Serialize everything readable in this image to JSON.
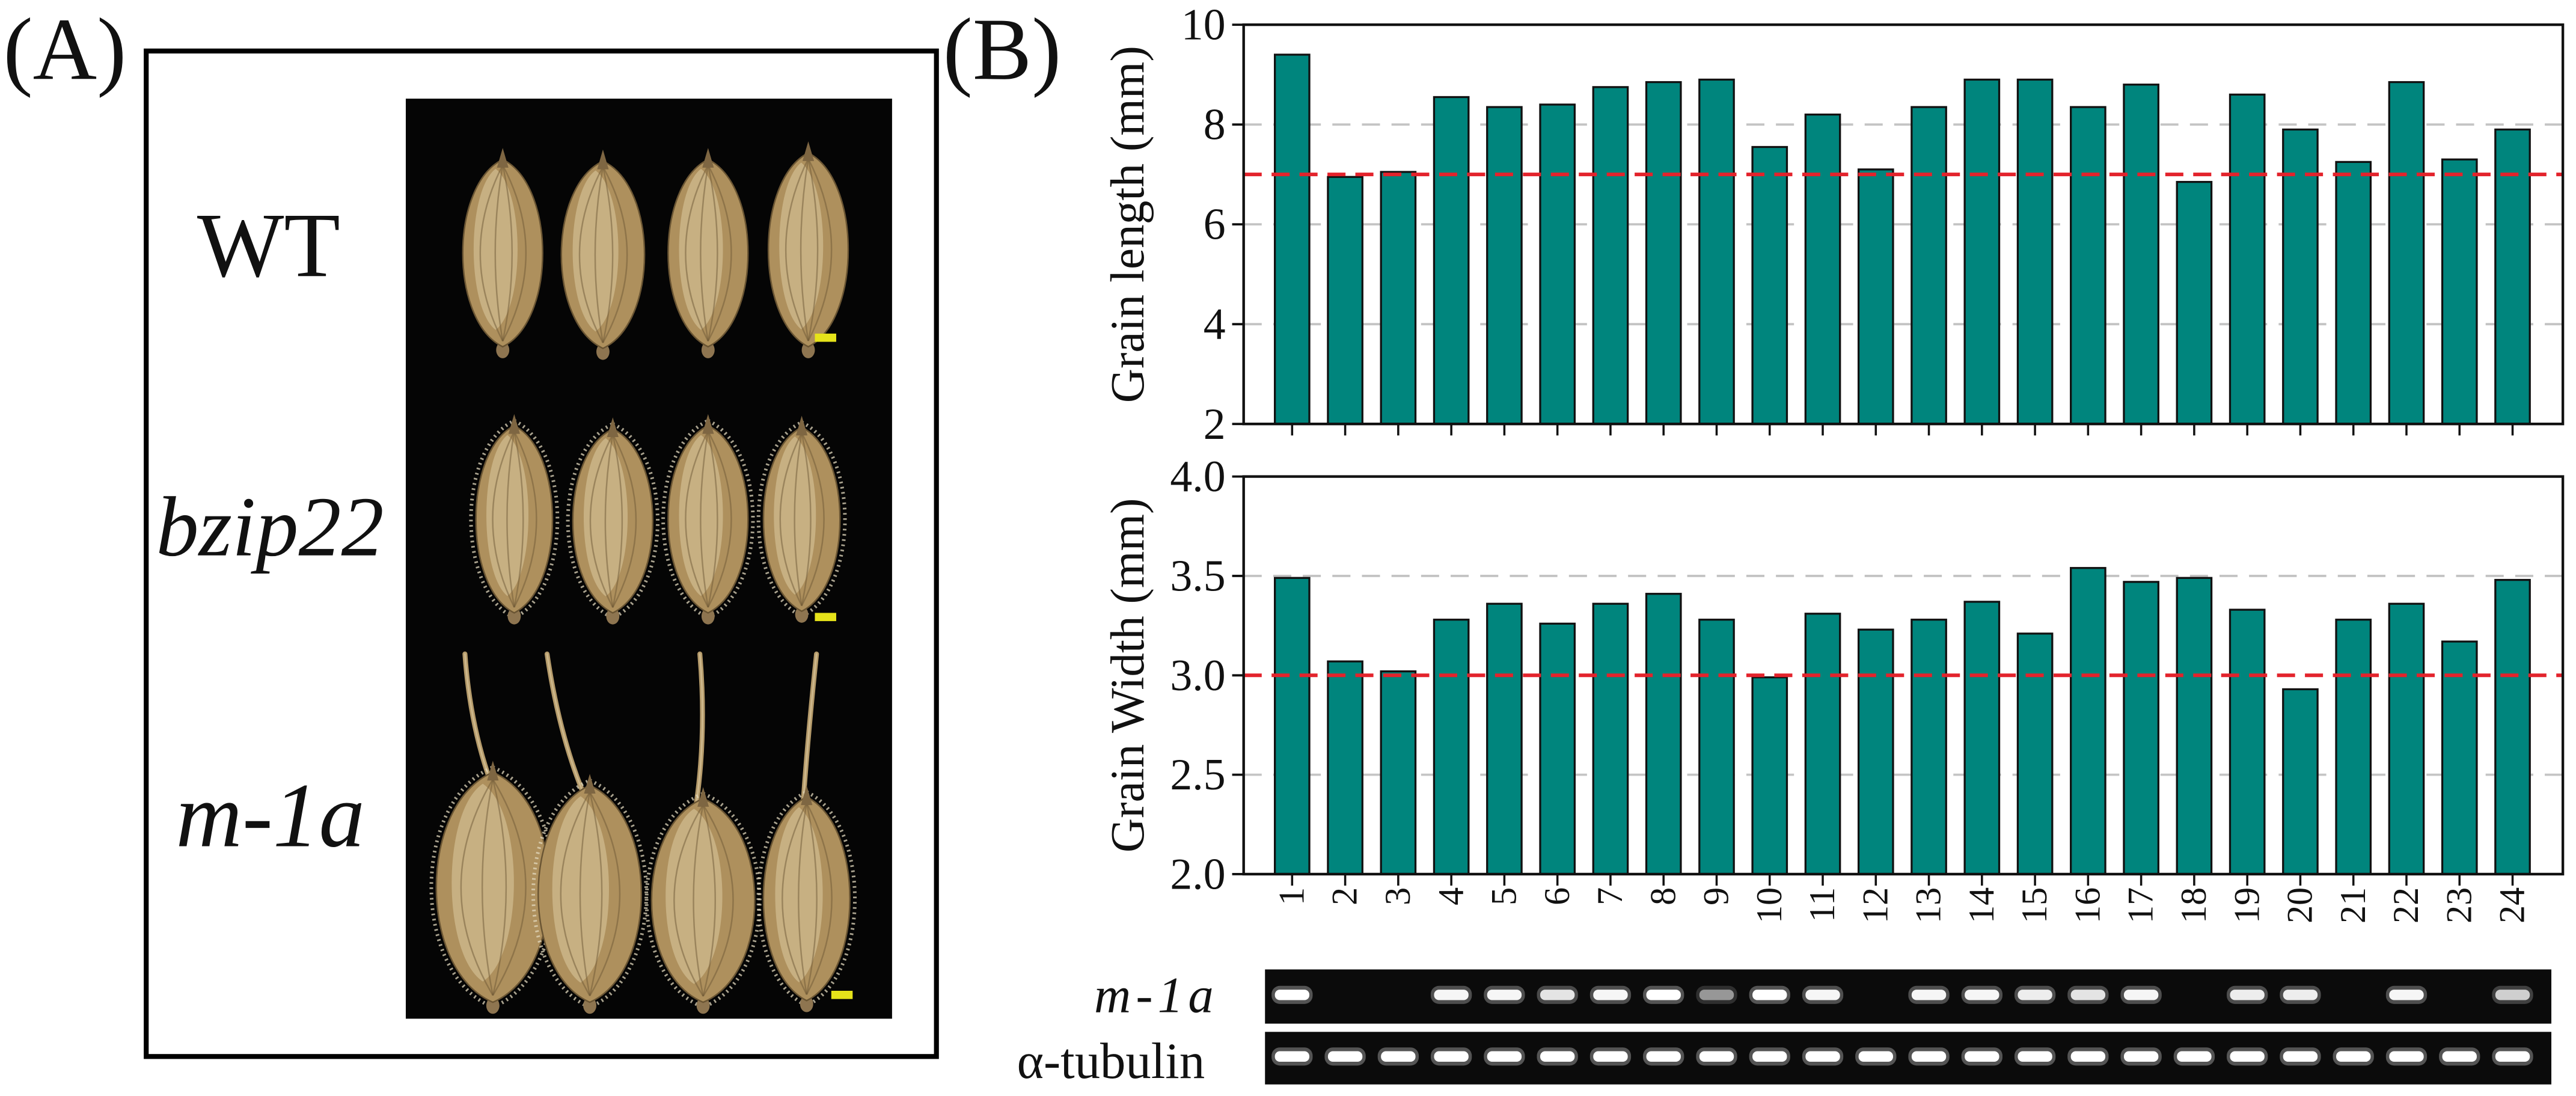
{
  "panel_a": {
    "label": "(A)",
    "rows": [
      {
        "label": "WT"
      },
      {
        "label": "bzip22"
      },
      {
        "label": "m-1a"
      }
    ]
  },
  "panel_b": {
    "label": "(B)"
  },
  "colors": {
    "bar": "#00857D",
    "reference_line": "#E3232C",
    "gridline": "#C4C4C4",
    "gel_background": "#0B0B0B",
    "gel_band": "#FFFFFF",
    "photo_background": "#050505",
    "grain": "#AE905D"
  },
  "chart_data": [
    {
      "type": "bar",
      "ylabel": "Grain length (mm)",
      "categories": [
        "1",
        "2",
        "3",
        "4",
        "5",
        "6",
        "7",
        "8",
        "9",
        "10",
        "11",
        "12",
        "13",
        "14",
        "15",
        "16",
        "17",
        "18",
        "19",
        "20",
        "21",
        "22",
        "23",
        "24"
      ],
      "values": [
        9.4,
        6.95,
        7.05,
        8.55,
        8.35,
        8.4,
        8.75,
        8.85,
        8.9,
        7.55,
        8.2,
        7.1,
        8.35,
        8.9,
        8.9,
        8.35,
        8.8,
        6.85,
        8.6,
        7.9,
        7.25,
        8.85,
        7.3,
        7.9
      ],
      "ylim": [
        2,
        10
      ],
      "yticks": [
        2,
        4,
        6,
        8,
        10
      ],
      "ytick_labels": [
        "2",
        "4",
        "6",
        "8",
        "10"
      ],
      "gridlines": [
        4,
        6,
        8
      ],
      "reference_line": 7,
      "grid": true,
      "x_tick_labels_visible": false
    },
    {
      "type": "bar",
      "ylabel": "Grain Width (mm)",
      "categories": [
        "1",
        "2",
        "3",
        "4",
        "5",
        "6",
        "7",
        "8",
        "9",
        "10",
        "11",
        "12",
        "13",
        "14",
        "15",
        "16",
        "17",
        "18",
        "19",
        "20",
        "21",
        "22",
        "23",
        "24"
      ],
      "values": [
        3.49,
        3.07,
        3.02,
        3.28,
        3.36,
        3.26,
        3.36,
        3.41,
        3.28,
        2.99,
        3.31,
        3.23,
        3.28,
        3.37,
        3.21,
        3.54,
        3.47,
        3.49,
        3.33,
        2.93,
        3.28,
        3.36,
        3.17,
        3.48
      ],
      "ylim": [
        2.0,
        4.0
      ],
      "yticks": [
        2.0,
        2.5,
        3.0,
        3.5,
        4.0
      ],
      "ytick_labels": [
        "2.0",
        "2.5",
        "3.0",
        "3.5",
        "4.0"
      ],
      "gridlines": [
        2.5,
        3.5
      ],
      "reference_line": 3.0,
      "grid": true,
      "x_tick_labels_visible": true
    }
  ],
  "gel": {
    "rows": [
      {
        "label": "m-1a",
        "band_intensity": [
          1,
          0,
          0,
          0.95,
          0.95,
          0.85,
          0.95,
          1,
          0.5,
          1,
          0.95,
          0,
          0.95,
          0.95,
          0.9,
          0.85,
          0.95,
          0,
          0.9,
          0.9,
          0,
          0.95,
          0,
          0.75
        ]
      },
      {
        "label": "α-tubulin",
        "band_intensity": [
          1,
          1,
          1,
          1,
          1,
          1,
          1,
          1,
          1,
          1,
          1,
          1,
          1,
          1,
          1,
          1,
          1,
          1,
          1,
          1,
          1,
          1,
          1,
          1
        ]
      }
    ]
  }
}
